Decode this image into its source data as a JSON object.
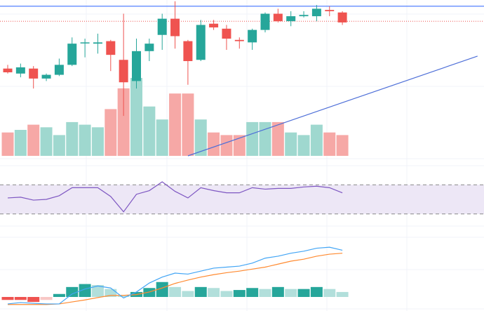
{
  "chart_data": {
    "type": "candlestick",
    "title": "",
    "xlabel": "",
    "ylabel": "",
    "grid": true,
    "colors": {
      "up": "#26a69a",
      "down": "#ef5350",
      "volume_up": "#9fd8cf",
      "volume_down": "#f6a8a6",
      "hist_up_strong": "#26a69a",
      "hist_up_weak": "#b2dfdb",
      "hist_down_strong": "#ef5350",
      "hist_down_weak": "#f8c8c6",
      "price_line": "#2962ff",
      "trend_line": "#4e6fd8",
      "ref_line": "#ef5350",
      "rsi_line": "#7e57c2",
      "rsi_band": "#ede7f6",
      "macd_line": "#42a5f5",
      "signal_line": "#ff8a30",
      "grid": "#f0f3fa"
    },
    "price_panel": {
      "ylim": [
        40,
        165
      ],
      "price_line": 160,
      "ref_line": 148,
      "trend_line": {
        "from": {
          "bar": 14,
          "value": 40
        },
        "to": {
          "bar": 36.5,
          "value": 120
        }
      },
      "candles": [
        {
          "o": 110,
          "h": 113,
          "l": 106,
          "c": 107
        },
        {
          "o": 106,
          "h": 114,
          "l": 103,
          "c": 111
        },
        {
          "o": 110,
          "h": 112,
          "l": 94,
          "c": 102
        },
        {
          "o": 102,
          "h": 106,
          "l": 100,
          "c": 105
        },
        {
          "o": 105,
          "h": 118,
          "l": 104,
          "c": 113
        },
        {
          "o": 113,
          "h": 135,
          "l": 112,
          "c": 130
        },
        {
          "o": 131,
          "h": 134,
          "l": 119,
          "c": 131
        },
        {
          "o": 130,
          "h": 138,
          "l": 122,
          "c": 131
        },
        {
          "o": 132,
          "h": 133,
          "l": 108,
          "c": 121
        },
        {
          "o": 117,
          "h": 154,
          "l": 72,
          "c": 99
        },
        {
          "o": 100,
          "h": 134,
          "l": 94,
          "c": 124
        },
        {
          "o": 124,
          "h": 134,
          "l": 116,
          "c": 130
        },
        {
          "o": 137,
          "h": 154,
          "l": 125,
          "c": 150
        },
        {
          "o": 150,
          "h": 164,
          "l": 126,
          "c": 136
        },
        {
          "o": 132,
          "h": 133,
          "l": 97,
          "c": 116
        },
        {
          "o": 117,
          "h": 149,
          "l": 116,
          "c": 145
        },
        {
          "o": 146,
          "h": 149,
          "l": 141,
          "c": 143
        },
        {
          "o": 142,
          "h": 145,
          "l": 125,
          "c": 134
        },
        {
          "o": 133,
          "h": 135,
          "l": 126,
          "c": 132
        },
        {
          "o": 131,
          "h": 142,
          "l": 125,
          "c": 141
        },
        {
          "o": 141,
          "h": 155,
          "l": 139,
          "c": 154
        },
        {
          "o": 154,
          "h": 158,
          "l": 147,
          "c": 148
        },
        {
          "o": 148,
          "h": 156,
          "l": 144,
          "c": 152
        },
        {
          "o": 152,
          "h": 156,
          "l": 151,
          "c": 153
        },
        {
          "o": 152,
          "h": 161,
          "l": 148,
          "c": 158
        },
        {
          "o": 157,
          "h": 160,
          "l": 152,
          "c": 156
        },
        {
          "o": 155,
          "h": 156,
          "l": 145,
          "c": 147
        }
      ]
    },
    "volume_panel": {
      "ylim": [
        0,
        60
      ],
      "values": [
        9,
        10,
        12,
        11,
        8,
        13,
        12,
        11,
        18,
        26,
        30,
        19,
        14,
        24,
        24,
        14,
        9,
        8,
        8,
        13,
        13,
        13,
        9,
        8,
        12,
        9,
        8
      ]
    },
    "rsi_panel": {
      "ylim": [
        0,
        100
      ],
      "upper": 70,
      "lower": 30,
      "values": [
        52,
        53,
        49,
        50,
        55,
        66,
        66,
        66,
        54,
        33,
        57,
        62,
        74,
        61,
        52,
        66,
        62,
        59,
        59,
        66,
        64,
        65,
        65,
        67,
        68,
        66,
        59
      ]
    },
    "macd_panel": {
      "ylim": [
        -6,
        30
      ],
      "histogram": [
        -1.5,
        -1.5,
        -2.5,
        -1.5,
        1.5,
        5,
        6.5,
        6,
        4,
        0.5,
        2.5,
        4.5,
        7.5,
        5,
        3,
        5,
        4.5,
        3,
        3.5,
        4.5,
        4,
        5,
        4,
        4,
        5,
        4,
        2.5
      ],
      "macd": [
        -3.5,
        -2.8,
        -3.2,
        -3.5,
        -3.5,
        1.5,
        4,
        5.5,
        4.5,
        -0.5,
        2.5,
        7,
        10,
        12,
        11.5,
        13,
        14.5,
        15,
        15.5,
        17,
        19.5,
        20.5,
        22,
        23,
        24.5,
        25,
        23.5
      ],
      "signal": [
        -3.8,
        -3.8,
        -3.8,
        -3.8,
        -3.5,
        -2.5,
        -1.5,
        -0.3,
        0.8,
        0.8,
        1.2,
        2.5,
        4.5,
        6.8,
        8.5,
        10,
        11.2,
        12.2,
        13,
        14,
        15,
        16.5,
        18,
        19,
        20.5,
        21.5,
        22
      ]
    }
  }
}
